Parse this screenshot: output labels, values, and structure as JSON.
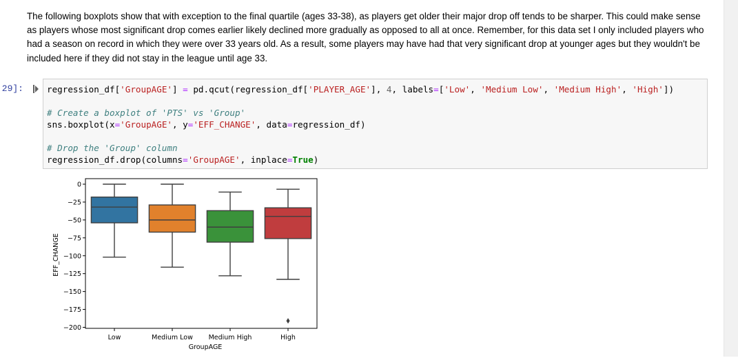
{
  "markdown": {
    "text": "The following boxplots show that with exception to the final quartile (ages 33-38), as players get older their major drop off tends to be sharper. This could make sense as players whose most significant drop comes earlier likely declined more gradually as opposed to all at once. Remember, for this data set I only included players who had a season on record in which they were over 33 years old. As a result, some players may have had that very significant drop at younger ages but they wouldn't be included here if they did not stay in the league until age 33."
  },
  "cell": {
    "prompt": "29]:",
    "code": {
      "l1": [
        "regression_df[",
        "'GroupAGE'",
        "] ",
        "=",
        " pd.qcut(regression_df[",
        "'PLAYER_AGE'",
        "], ",
        "4",
        ", labels",
        "=",
        "[",
        "'Low'",
        ", ",
        "'Medium Low'",
        ", ",
        "'Medium High'",
        ", ",
        "'High'",
        "])"
      ],
      "l3": "# Create a boxplot of 'PTS' vs 'Group'",
      "l4": [
        "sns.boxplot(x",
        "=",
        "'GroupAGE'",
        ", y",
        "=",
        "'EFF_CHANGE'",
        ", data",
        "=",
        "regression_df)"
      ],
      "l6": "# Drop the 'Group' column",
      "l7": [
        "regression_df.drop(columns",
        "=",
        "'GroupAGE'",
        ", inplace",
        "=",
        "True",
        ")"
      ]
    }
  },
  "chart_data": {
    "type": "box",
    "xlabel": "GroupAGE",
    "ylabel": "EFF_CHANGE",
    "ylim": [
      -200,
      0
    ],
    "yticks": [
      0,
      -25,
      -50,
      -75,
      -100,
      -125,
      -150,
      -175,
      -200
    ],
    "categories": [
      "Low",
      "Medium Low",
      "Medium High",
      "High"
    ],
    "boxes": [
      {
        "name": "Low",
        "whislo": -102,
        "q1": -54,
        "med": -32,
        "q3": -18,
        "whishi": 0,
        "fliers": [],
        "color": "#3274a1"
      },
      {
        "name": "Medium Low",
        "whislo": -116,
        "q1": -67,
        "med": -50,
        "q3": -29,
        "whishi": 0,
        "fliers": [],
        "color": "#e1812c"
      },
      {
        "name": "Medium High",
        "whislo": -128,
        "q1": -81,
        "med": -60,
        "q3": -37,
        "whishi": -11,
        "fliers": [],
        "color": "#3a923a"
      },
      {
        "name": "High",
        "whislo": -133,
        "q1": -76,
        "med": -45,
        "q3": -33,
        "whishi": -7,
        "fliers": [
          -191
        ],
        "color": "#c03d3e"
      }
    ]
  }
}
